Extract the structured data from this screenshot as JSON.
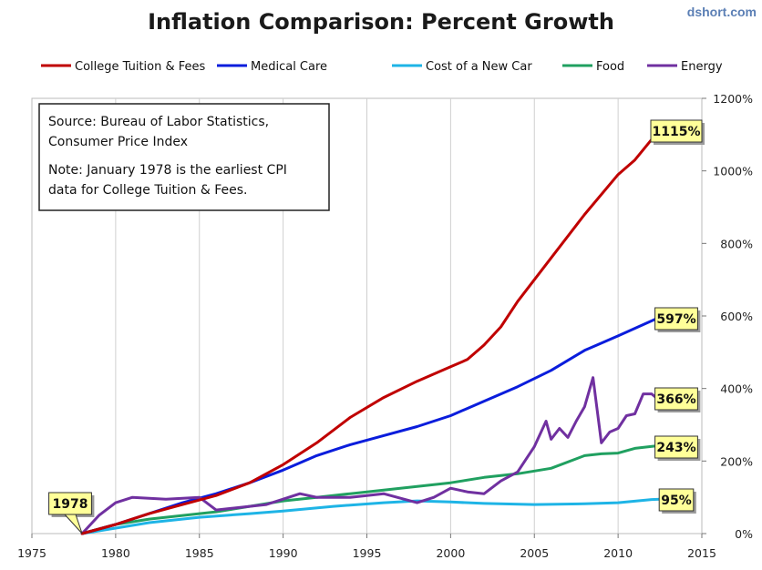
{
  "chart_data": {
    "type": "line",
    "title": "Inflation Comparison: Percent Growth",
    "watermark": "dshort.com",
    "xlim": [
      1975,
      2015
    ],
    "ylim": [
      0,
      1200
    ],
    "x_ticks": [
      "1975",
      "1980",
      "1985",
      "1990",
      "1995",
      "2000",
      "2005",
      "2010",
      "2015"
    ],
    "y_ticks": [
      "0%",
      "200%",
      "400%",
      "600%",
      "800%",
      "1000%",
      "1200%"
    ],
    "grid": "vertical",
    "legend_position": "top",
    "note_lines": [
      "Source: Bureau of Labor Statistics,",
      "Consumer Price Index",
      "Note: January 1978  is the earliest CPI",
      "data for College Tuition & Fees."
    ],
    "start_label": "1978",
    "series": [
      {
        "name": "College Tuition & Fees",
        "color": "#c00000",
        "end_label": "1115%",
        "x": [
          1978,
          1980,
          1982,
          1984,
          1986,
          1988,
          1990,
          1992,
          1994,
          1996,
          1998,
          2000,
          2001,
          2002,
          2003,
          2004,
          2006,
          2008,
          2010,
          2011,
          2012.5
        ],
        "y": [
          0,
          25,
          55,
          80,
          105,
          140,
          190,
          250,
          320,
          375,
          420,
          460,
          480,
          520,
          570,
          640,
          760,
          880,
          990,
          1030,
          1115
        ]
      },
      {
        "name": "Medical Care",
        "color": "#0a1ddc",
        "end_label": "597%",
        "x": [
          1978,
          1980,
          1982,
          1984,
          1986,
          1988,
          1990,
          1992,
          1994,
          1996,
          1998,
          2000,
          2002,
          2004,
          2006,
          2008,
          2010,
          2012.5
        ],
        "y": [
          0,
          25,
          55,
          85,
          110,
          140,
          175,
          215,
          245,
          270,
          295,
          325,
          365,
          405,
          450,
          505,
          545,
          597
        ]
      },
      {
        "name": "Cost of a New Car",
        "color": "#1eb4e6",
        "end_label": "95%",
        "x": [
          1978,
          1980,
          1982,
          1985,
          1988,
          1990,
          1993,
          1996,
          1998,
          2000,
          2002,
          2005,
          2008,
          2010,
          2012,
          2012.5
        ],
        "y": [
          0,
          15,
          30,
          45,
          55,
          62,
          75,
          85,
          90,
          87,
          83,
          80,
          82,
          85,
          94,
          95
        ]
      },
      {
        "name": "Food",
        "color": "#20a060",
        "end_label": "243%",
        "x": [
          1978,
          1980,
          1982,
          1984,
          1986,
          1988,
          1990,
          1992,
          1994,
          1996,
          1998,
          2000,
          2002,
          2004,
          2006,
          2008,
          2009,
          2010,
          2011,
          2012.5
        ],
        "y": [
          0,
          25,
          40,
          50,
          60,
          75,
          90,
          100,
          110,
          120,
          130,
          140,
          155,
          165,
          180,
          215,
          220,
          222,
          235,
          243
        ]
      },
      {
        "name": "Energy",
        "color": "#7030a0",
        "end_label": "366%",
        "x": [
          1978,
          1979,
          1980,
          1981,
          1983,
          1985,
          1986,
          1987,
          1989,
          1990,
          1991,
          1992,
          1994,
          1996,
          1998,
          1999,
          2000,
          2001,
          2002,
          2003,
          2004,
          2005,
          2005.7,
          2006,
          2006.5,
          2007,
          2007.5,
          2008,
          2008.5,
          2009,
          2009.5,
          2010,
          2010.5,
          2011,
          2011.5,
          2012,
          2012.5
        ],
        "y": [
          0,
          50,
          85,
          100,
          95,
          100,
          65,
          70,
          80,
          95,
          110,
          100,
          100,
          110,
          85,
          100,
          125,
          115,
          110,
          145,
          170,
          240,
          310,
          260,
          290,
          265,
          310,
          350,
          430,
          250,
          280,
          290,
          325,
          330,
          385,
          385,
          366
        ]
      }
    ]
  }
}
